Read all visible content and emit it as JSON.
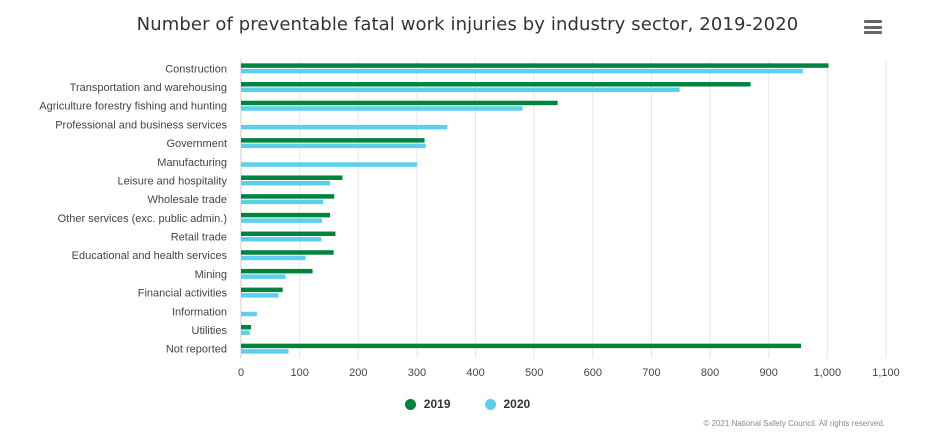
{
  "title": "Number of preventable fatal work injuries by industry sector, 2019-2020",
  "menu_icon": "hamburger-menu-icon",
  "credit": "© 2021 National Safety Council. All rights reserved.",
  "colors": {
    "2019": "#00843d",
    "2020": "#5ccfef",
    "grid": "#e6e6e6"
  },
  "chart_data": {
    "type": "bar",
    "orientation": "horizontal",
    "categories": [
      "Construction",
      "Transportation and warehousing",
      "Agriculture forestry fishing and hunting",
      "Professional and business services",
      "Government",
      "Manufacturing",
      "Leisure and hospitality",
      "Wholesale trade",
      "Other services (exc. public admin.)",
      "Retail trade",
      "Educational and health services",
      "Mining",
      "Financial activities",
      "Information",
      "Utilities",
      "Not reported"
    ],
    "series": [
      {
        "name": "2019",
        "values": [
          1002,
          869,
          540,
          0,
          313,
          0,
          173,
          159,
          152,
          161,
          158,
          122,
          71,
          0,
          17,
          955
        ]
      },
      {
        "name": "2020",
        "values": [
          958,
          748,
          480,
          352,
          315,
          300,
          152,
          140,
          138,
          137,
          110,
          76,
          64,
          27,
          15,
          81
        ]
      }
    ],
    "xlim": [
      0,
      1100
    ],
    "xticks": [
      "0",
      "100",
      "200",
      "300",
      "400",
      "500",
      "600",
      "700",
      "800",
      "900",
      "1,000",
      "1,100"
    ],
    "grid": true,
    "legend": "bottom-center"
  }
}
